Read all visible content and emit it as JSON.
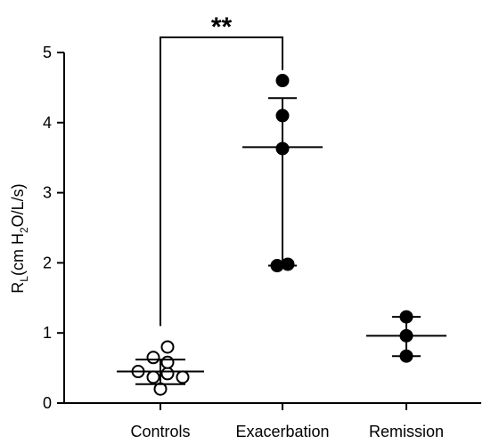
{
  "chart_data": {
    "type": "scatter",
    "title": "",
    "ylabel": {
      "parts": [
        {
          "text": "R",
          "sub": false
        },
        {
          "text": "L",
          "sub": true
        },
        {
          "text": "(cm H",
          "sub": false
        },
        {
          "text": "2",
          "sub": true
        },
        {
          "text": "O/L/s)",
          "sub": false
        }
      ]
    },
    "ylim": [
      0,
      5
    ],
    "yticks": [
      "0",
      "1",
      "2",
      "3",
      "4",
      "5"
    ],
    "grid": false,
    "categories": [
      "Controls",
      "Exacerbation",
      "Remission"
    ],
    "groups": [
      {
        "category": "Controls",
        "marker": "open-circle",
        "points": [
          {
            "offset": -0.25,
            "y": 0.45
          },
          {
            "offset": -0.08,
            "y": 0.65
          },
          {
            "offset": 0.08,
            "y": 0.8
          },
          {
            "offset": -0.08,
            "y": 0.37
          },
          {
            "offset": 0.0,
            "y": 0.2
          },
          {
            "offset": 0.08,
            "y": 0.42
          },
          {
            "offset": 0.25,
            "y": 0.37
          },
          {
            "offset": 0.08,
            "y": 0.58
          }
        ],
        "center": 0.45,
        "error": [
          0.27,
          0.62
        ]
      },
      {
        "category": "Exacerbation",
        "marker": "filled-circle",
        "points": [
          {
            "offset": 0.0,
            "y": 4.6
          },
          {
            "offset": 0.0,
            "y": 4.1
          },
          {
            "offset": 0.0,
            "y": 3.63
          },
          {
            "offset": -0.06,
            "y": 1.96
          },
          {
            "offset": 0.06,
            "y": 1.98
          }
        ],
        "center": 3.65,
        "error": [
          1.96,
          4.35
        ]
      },
      {
        "category": "Remission",
        "marker": "filled-circle",
        "points": [
          {
            "offset": 0.0,
            "y": 1.23
          },
          {
            "offset": 0.0,
            "y": 0.96
          },
          {
            "offset": 0.0,
            "y": 0.67
          }
        ],
        "center": 0.96,
        "error": [
          0.67,
          1.23
        ]
      }
    ],
    "significance": {
      "from": "Controls",
      "to": "Exacerbation",
      "label": "**",
      "y": 5.0,
      "from_y": 1.1,
      "to_y": 4.75
    }
  }
}
